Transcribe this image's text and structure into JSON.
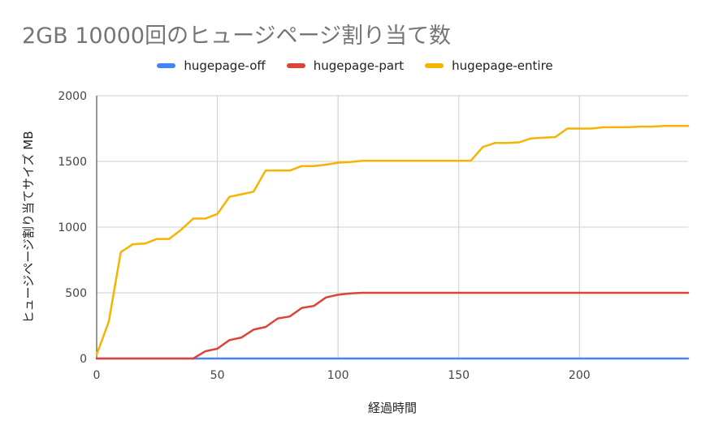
{
  "title": "2GB 10000回のヒュージページ割り当て数",
  "chart_data": {
    "type": "line",
    "title": "2GB 10000回のヒュージページ割り当て数",
    "xlabel": "経過時間",
    "ylabel": "ヒュージページ割り当てサイズ MB",
    "xlim": [
      0,
      245
    ],
    "ylim": [
      0,
      2000
    ],
    "xticks": [
      0,
      50,
      100,
      150,
      200
    ],
    "yticks": [
      0,
      500,
      1000,
      1500,
      2000
    ],
    "grid": true,
    "legend_position": "top",
    "x": [
      0,
      5,
      10,
      15,
      20,
      25,
      30,
      35,
      40,
      45,
      50,
      55,
      60,
      65,
      70,
      75,
      80,
      85,
      90,
      95,
      100,
      105,
      110,
      115,
      120,
      125,
      130,
      135,
      140,
      145,
      150,
      155,
      160,
      165,
      170,
      175,
      180,
      185,
      190,
      195,
      200,
      205,
      210,
      215,
      220,
      225,
      230,
      235,
      240,
      245
    ],
    "series": [
      {
        "name": "hugepage-off",
        "color": "#4285f4",
        "values": [
          0,
          0,
          0,
          0,
          0,
          0,
          0,
          0,
          0,
          0,
          0,
          0,
          0,
          0,
          0,
          0,
          0,
          0,
          0,
          0,
          0,
          0,
          0,
          0,
          0,
          0,
          0,
          0,
          0,
          0,
          0,
          0,
          0,
          0,
          0,
          0,
          0,
          0,
          0,
          0,
          0,
          0,
          0,
          0,
          0,
          0,
          0,
          0,
          0,
          0
        ]
      },
      {
        "name": "hugepage-part",
        "color": "#db4437",
        "values": [
          0,
          0,
          0,
          0,
          0,
          0,
          0,
          0,
          0,
          55,
          75,
          140,
          160,
          220,
          240,
          305,
          320,
          385,
          400,
          465,
          485,
          495,
          500,
          500,
          500,
          500,
          500,
          500,
          500,
          500,
          500,
          500,
          500,
          500,
          500,
          500,
          500,
          500,
          500,
          500,
          500,
          500,
          500,
          500,
          500,
          500,
          500,
          500,
          500,
          500
        ]
      },
      {
        "name": "hugepage-entire",
        "color": "#f4b400",
        "values": [
          30,
          280,
          810,
          870,
          875,
          910,
          910,
          980,
          1065,
          1065,
          1100,
          1230,
          1250,
          1270,
          1430,
          1430,
          1430,
          1465,
          1465,
          1475,
          1490,
          1495,
          1505,
          1505,
          1505,
          1505,
          1505,
          1505,
          1505,
          1505,
          1505,
          1505,
          1610,
          1640,
          1640,
          1645,
          1675,
          1680,
          1685,
          1750,
          1750,
          1750,
          1760,
          1760,
          1760,
          1765,
          1765,
          1770,
          1770,
          1770
        ]
      }
    ]
  }
}
